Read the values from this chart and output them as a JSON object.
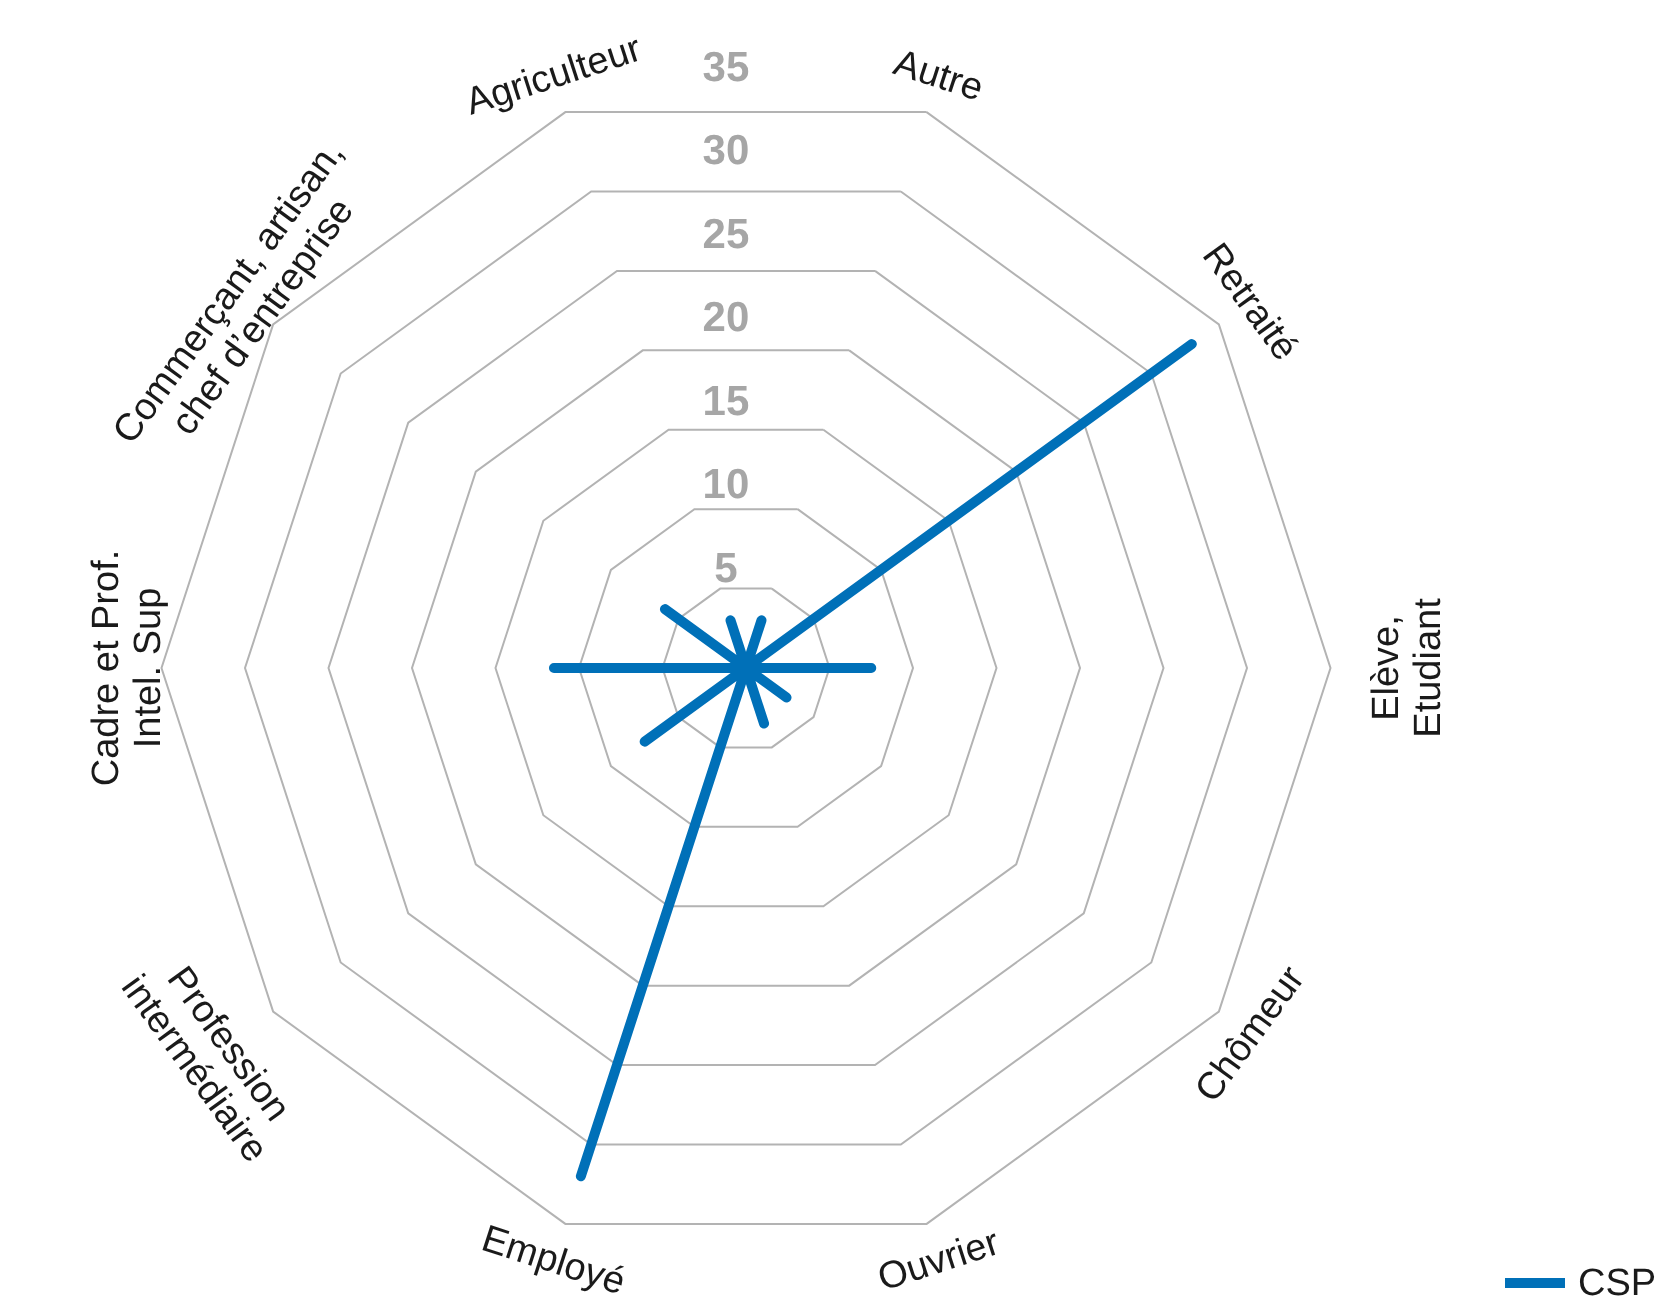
{
  "chart_data": {
    "type": "radar",
    "categories": [
      "Autre",
      "Retraité",
      "Elève,\nEtudiant",
      "Chômeur",
      "Ouvrier",
      "Employé",
      "Profession\nintermédiaire",
      "Cadre et Prof.\nIntel. Sup",
      "Commerçant, artisan,\nchef d’entreprise",
      "Agriculteur"
    ],
    "series": [
      {
        "name": "CSP",
        "color": "#0070b8",
        "values": [
          3,
          33,
          7.5,
          3,
          3.5,
          32,
          7.5,
          11.5,
          6,
          3
        ]
      }
    ],
    "ylim": [
      0,
      35
    ],
    "yticks": [
      5,
      10,
      15,
      20,
      25,
      30,
      35
    ],
    "grid": true,
    "legend": "bottom right"
  }
}
